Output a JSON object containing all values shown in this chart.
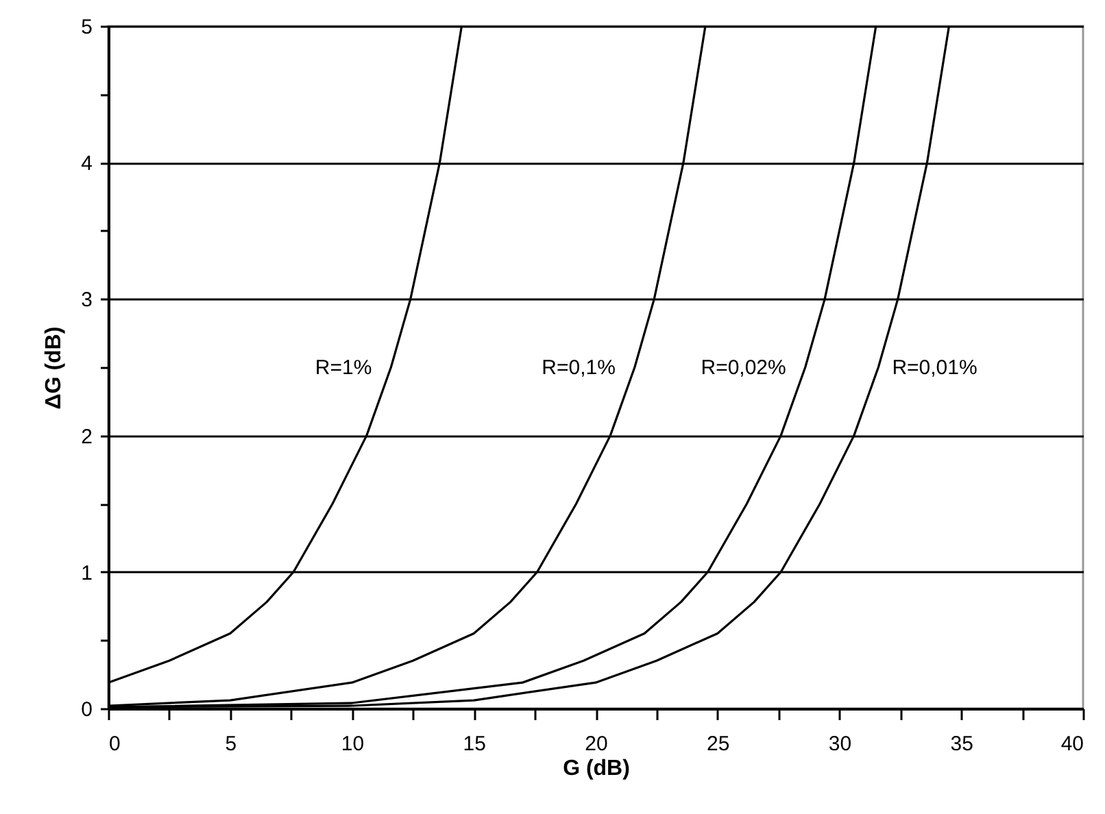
{
  "chart_data": {
    "type": "line",
    "xlabel": "G (dB)",
    "ylabel": "ΔG (dB)",
    "xlim": [
      0,
      40
    ],
    "xticks": [
      0,
      {
        "value": 2.5,
        "label": null
      },
      5,
      {
        "value": 7.5,
        "label": null
      },
      10,
      {
        "value": 12.5,
        "label": null
      },
      15,
      {
        "value": 17.5,
        "label": null
      },
      20,
      {
        "value": 22.5,
        "label": null
      },
      25,
      {
        "value": 27.5,
        "label": null
      },
      30,
      {
        "value": 32.5,
        "label": null
      },
      35,
      {
        "value": 37.5,
        "label": null
      },
      40
    ],
    "ylim": [
      0,
      5
    ],
    "yticks": [
      0,
      {
        "value": 0.5,
        "label": null
      },
      1,
      {
        "value": 1.5,
        "label": null
      },
      2,
      {
        "value": 2.5,
        "label": null
      },
      3,
      {
        "value": 3.5,
        "label": null
      },
      4,
      {
        "value": 4.5,
        "label": null
      },
      5
    ],
    "grid": "y",
    "marker": "none",
    "line_style": "solid",
    "series": [
      {
        "name": "R=1%",
        "color": "#000000",
        "x": [
          0,
          2.5,
          5,
          6.5,
          7.6,
          9.2,
          10.6,
          11.6,
          12.4,
          13.6,
          14.5
        ],
        "values": [
          0.19,
          0.35,
          0.55,
          0.78,
          1,
          1.5,
          2,
          2.5,
          3,
          4,
          5
        ]
      },
      {
        "name": "R=0,1%",
        "color": "#000000",
        "x": [
          0,
          5,
          10,
          12.5,
          15,
          16.5,
          17.6,
          19.2,
          20.6,
          21.6,
          22.4,
          23.6,
          24.5
        ],
        "values": [
          0.02,
          0.06,
          0.19,
          0.35,
          0.55,
          0.78,
          1,
          1.5,
          2,
          2.5,
          3,
          4,
          5
        ]
      },
      {
        "name": "R=0,02%",
        "color": "#000000",
        "x": [
          0,
          10,
          17,
          19.5,
          22,
          23.5,
          24.6,
          26.2,
          27.6,
          28.6,
          29.4,
          30.6,
          31.5
        ],
        "values": [
          0.01,
          0.04,
          0.19,
          0.35,
          0.55,
          0.78,
          1,
          1.5,
          2,
          2.5,
          3,
          4,
          5
        ]
      },
      {
        "name": "R=0,01%",
        "color": "#000000",
        "x": [
          0,
          10,
          15,
          20,
          22.5,
          25,
          26.5,
          27.6,
          29.2,
          30.6,
          31.6,
          32.4,
          33.6,
          34.5
        ],
        "values": [
          0.01,
          0.02,
          0.06,
          0.19,
          0.35,
          0.55,
          0.78,
          1,
          1.5,
          2,
          2.5,
          3,
          4,
          5
        ]
      }
    ]
  }
}
